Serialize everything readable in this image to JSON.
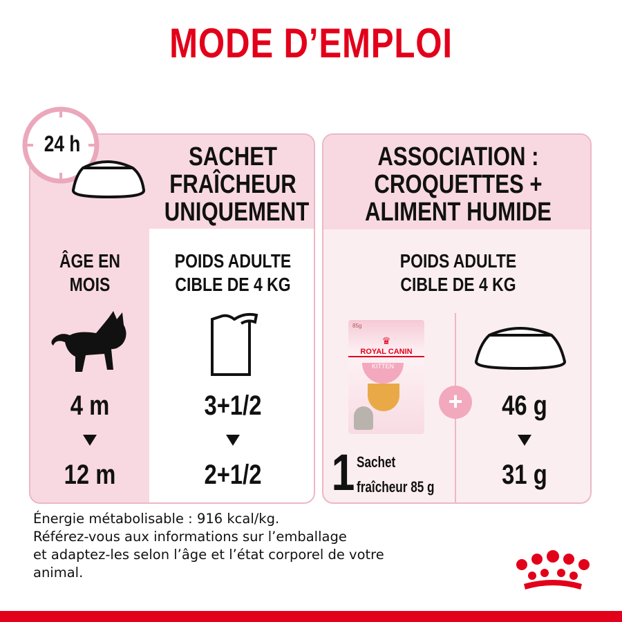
{
  "title": "MODE D’EMPLOI",
  "clock_label": "24 h",
  "left_panel": {
    "header": [
      "SACHET",
      "FRAÎCHEUR",
      "UNIQUEMENT"
    ],
    "age_label": [
      "ÂGE EN",
      "MOIS"
    ],
    "weight_label": [
      "POIDS ADULTE",
      "CIBLE DE 4 KG"
    ],
    "age_from": "4 m",
    "age_to": "12 m",
    "sachets_from": "3+1/2",
    "sachets_to": "2+1/2"
  },
  "right_panel": {
    "header": [
      "ASSOCIATION :",
      "CROQUETTES +",
      "ALIMENT HUMIDE"
    ],
    "weight_label": [
      "POIDS ADULTE",
      "CIBLE DE 4 KG"
    ],
    "pouch": {
      "weight": "85g",
      "brand": "ROYAL CANIN",
      "variety": "KITTEN"
    },
    "sachet_count": "1",
    "sachet_text": [
      "Sachet",
      "fraîcheur 85 g"
    ],
    "kibble_from": "46 g",
    "kibble_to": "31 g"
  },
  "footer": [
    "Énergie métabolisable : 916 kcal/kg.",
    "Référez-vous aux informations sur l’emballage",
    "et adaptez-les selon l’âge et l’état corporel de votre",
    "animal."
  ],
  "colors": {
    "brand_red": "#e2001a",
    "pink": "#f8d9e1",
    "light_pink": "#fbeef1",
    "border_pink": "#ecb7c5"
  }
}
